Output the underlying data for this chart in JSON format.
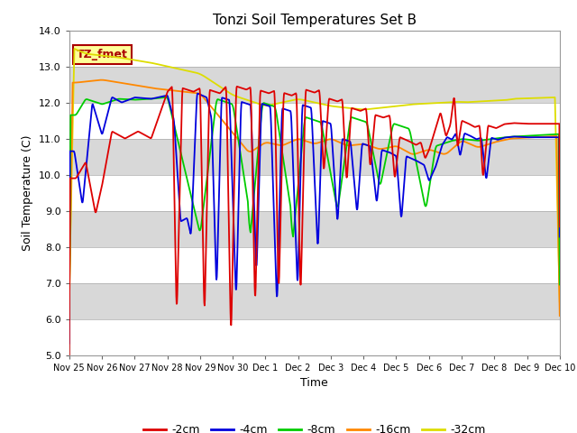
{
  "title": "Tonzi Soil Temperatures Set B",
  "xlabel": "Time",
  "ylabel": "Soil Temperature (C)",
  "ylim": [
    5.0,
    14.0
  ],
  "yticks": [
    5.0,
    6.0,
    7.0,
    8.0,
    9.0,
    10.0,
    11.0,
    12.0,
    13.0,
    14.0
  ],
  "xtick_labels": [
    "Nov 25",
    "Nov 26",
    "Nov 27",
    "Nov 28",
    "Nov 29",
    "Nov 30",
    "Dec 1",
    "Dec 2",
    "Dec 3",
    "Dec 4",
    "Dec 5",
    "Dec 6",
    "Dec 7",
    "Dec 8",
    "Dec 9",
    "Dec 10"
  ],
  "series_colors": {
    "-2cm": "#dd0000",
    "-4cm": "#0000dd",
    "-8cm": "#00cc00",
    "-16cm": "#ff8800",
    "-32cm": "#dddd00"
  },
  "series_labels": [
    "-2cm",
    "-4cm",
    "-8cm",
    "-16cm",
    "-32cm"
  ],
  "annotation_text": "TZ_fmet",
  "annotation_color": "#aa0000",
  "annotation_bg": "#ffff99",
  "annotation_border": "#aa0000",
  "band_colors": [
    "#ffffff",
    "#e0e0e0"
  ],
  "title_fontsize": 11,
  "label_fontsize": 9,
  "tick_fontsize": 8,
  "legend_fontsize": 9
}
